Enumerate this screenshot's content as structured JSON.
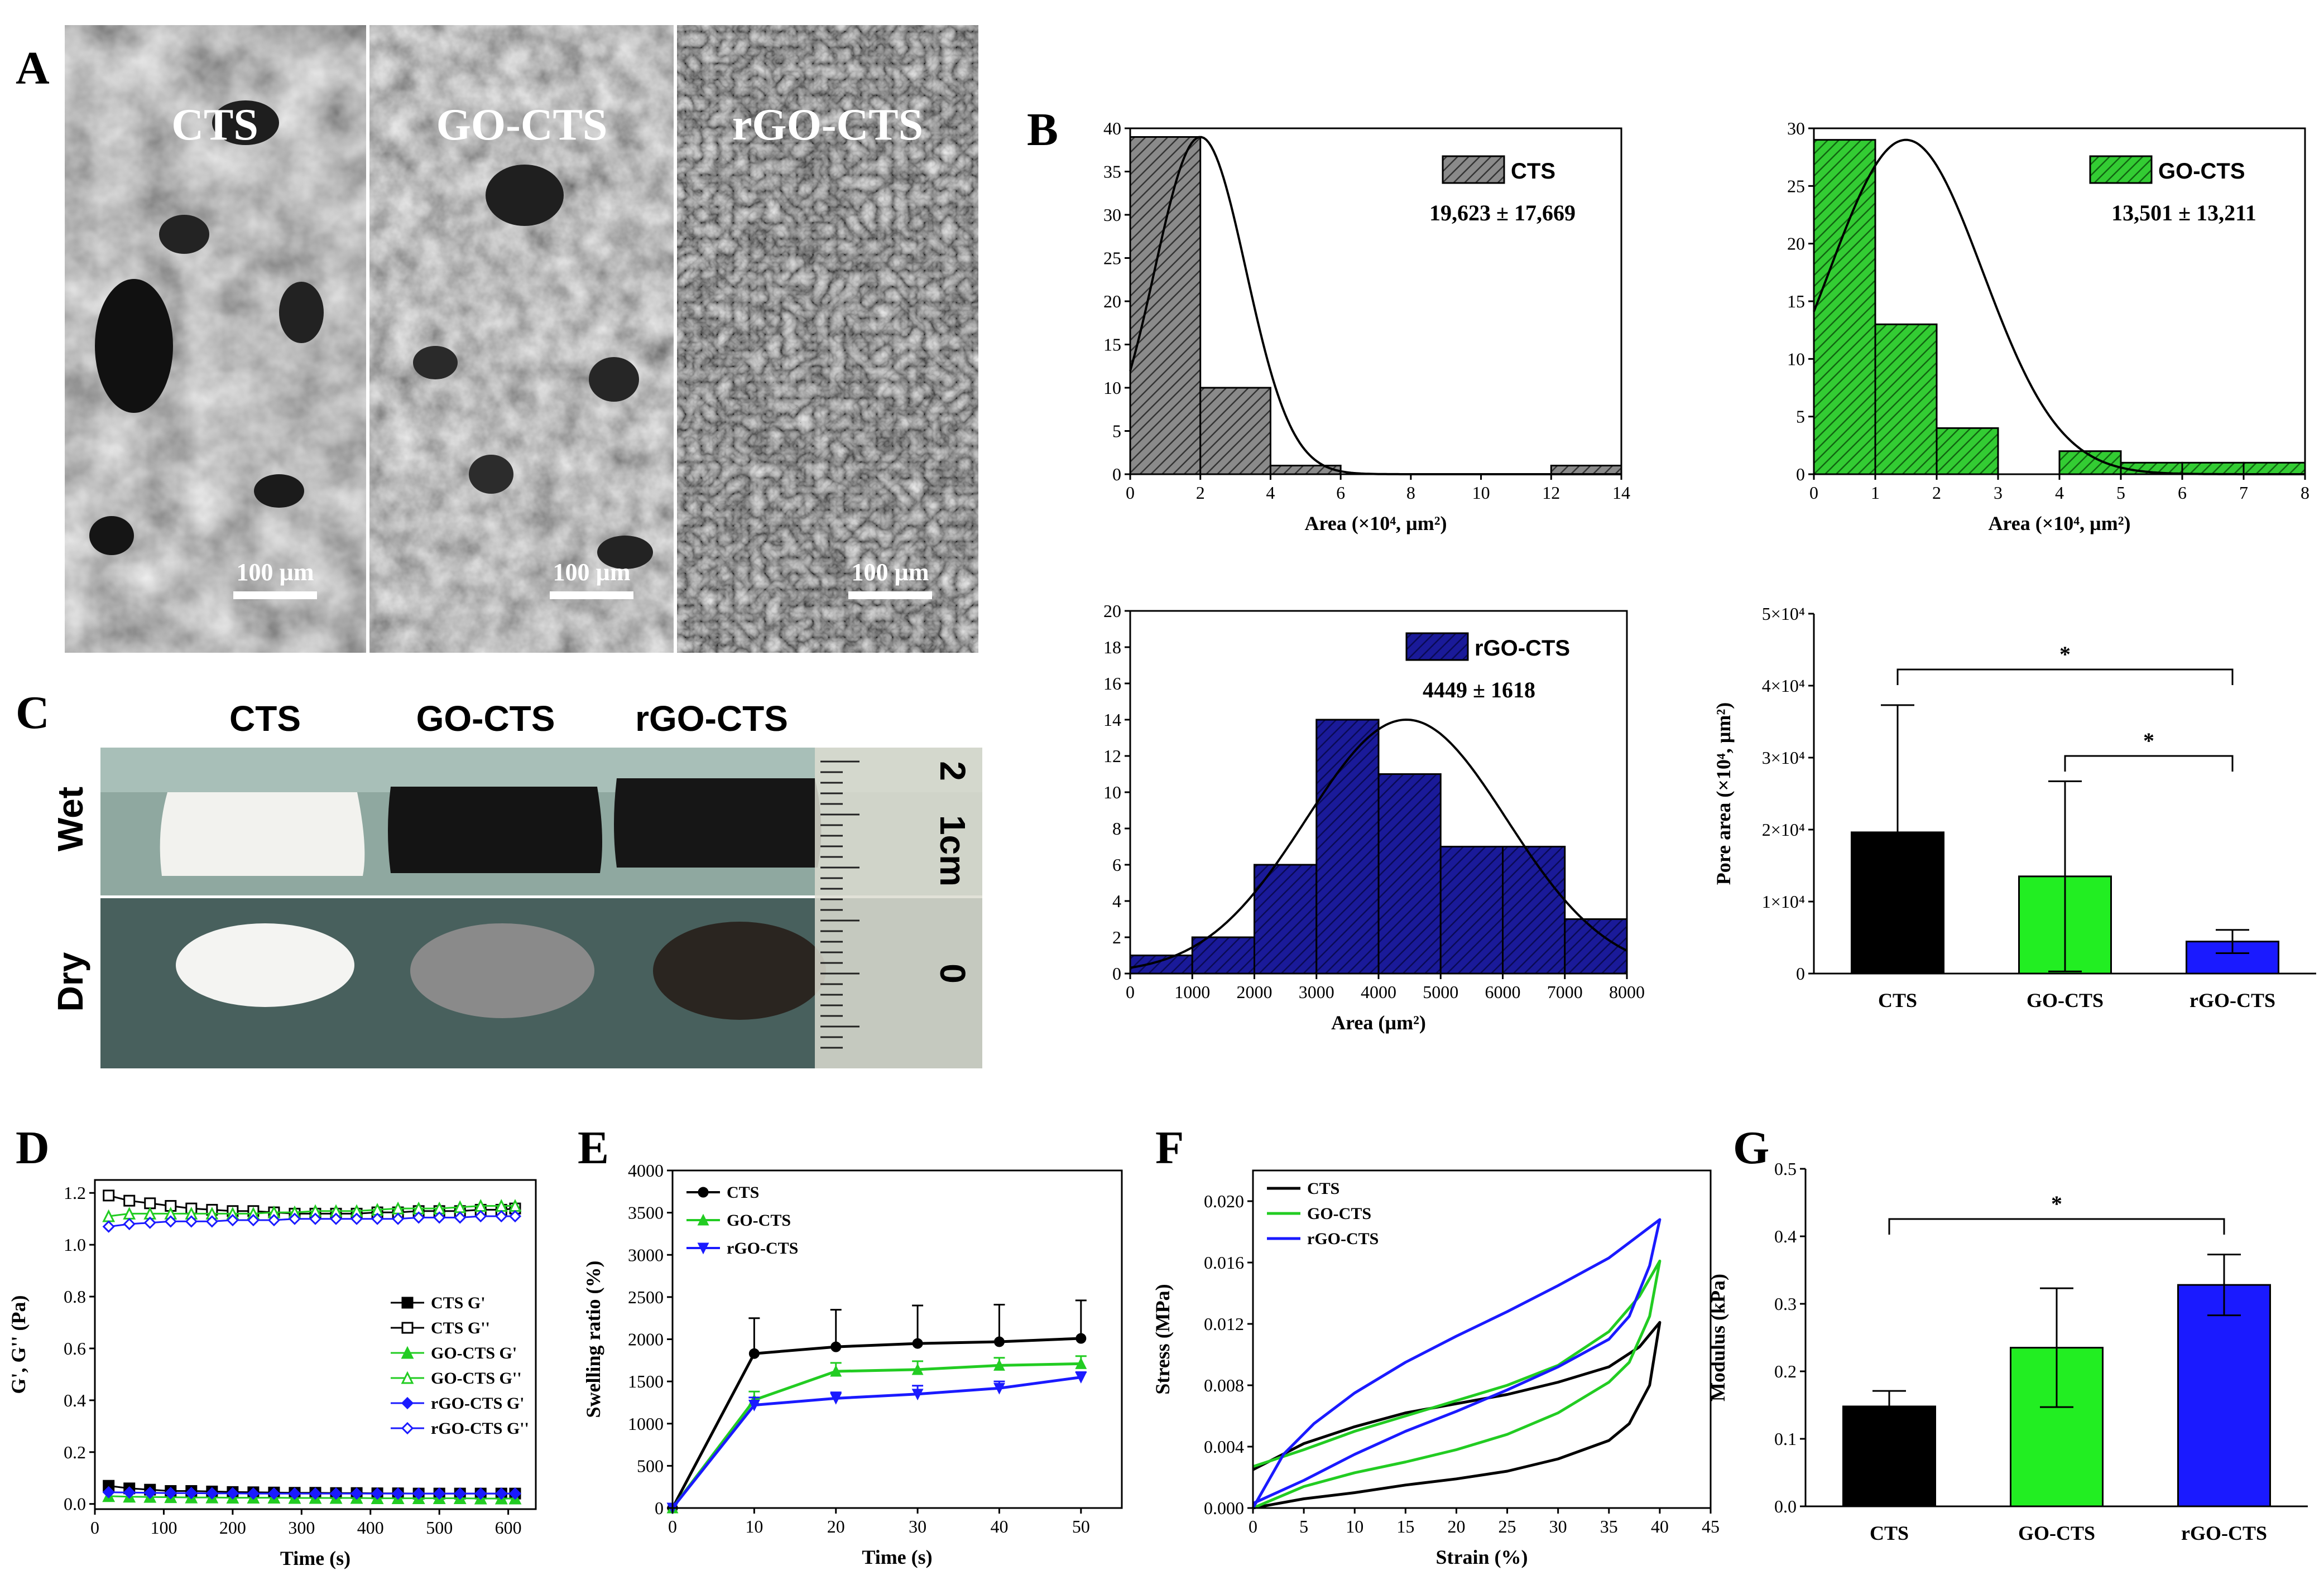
{
  "panel_labels": {
    "a": "A",
    "b": "B",
    "c": "C",
    "d": "D",
    "e": "E",
    "f": "F",
    "g": "G"
  },
  "colors": {
    "cts": "#000000",
    "go": "#22cc22",
    "rgo": "#1a1aff",
    "hist_cts": "#6e6e6e",
    "hist_go": "#2eb82e",
    "hist_rgo": "#14148c",
    "fit": "#000000"
  },
  "panel_a": {
    "images": [
      {
        "label": "CTS",
        "scale_bar": "100 µm"
      },
      {
        "label": "GO-CTS",
        "scale_bar": "100 µm"
      },
      {
        "label": "rGO-CTS",
        "scale_bar": "100 µm"
      }
    ]
  },
  "panel_c": {
    "columns": [
      "CTS",
      "GO-CTS",
      "rGO-CTS"
    ],
    "rows": [
      "Wet",
      "Dry"
    ],
    "ruler": {
      "cm_label": "1cm",
      "mark_2": "2",
      "mark_0": "0"
    }
  },
  "chart_data": [
    {
      "id": "B1",
      "type": "bar",
      "style": "histogram",
      "series_name": "CTS",
      "stat": "19,623 ± 17,669",
      "xlabel": "Area (×10⁴, µm²)",
      "ylabel": "",
      "xlim": [
        0,
        14
      ],
      "ylim": [
        0,
        40
      ],
      "xticks": [
        "0",
        "2",
        "4",
        "6",
        "8",
        "10",
        "12",
        "14"
      ],
      "yticks": [
        "0",
        "5",
        "10",
        "15",
        "20",
        "25",
        "30",
        "35",
        "40"
      ],
      "bins": [
        {
          "x0": 0,
          "x1": 2,
          "count": 39
        },
        {
          "x0": 2,
          "x1": 4,
          "count": 10
        },
        {
          "x0": 4,
          "x1": 6,
          "count": 1
        },
        {
          "x0": 12,
          "x1": 14,
          "count": 1
        }
      ],
      "fit": {
        "mean": 2.0,
        "sd": 1.3,
        "peak": 39
      }
    },
    {
      "id": "B2",
      "type": "bar",
      "style": "histogram",
      "series_name": "GO-CTS",
      "stat": "13,501 ± 13,211",
      "xlabel": "Area (×10⁴, µm²)",
      "ylabel": "",
      "xlim": [
        0,
        8
      ],
      "ylim": [
        0,
        30
      ],
      "xticks": [
        "0",
        "1",
        "2",
        "3",
        "4",
        "5",
        "6",
        "7",
        "8"
      ],
      "yticks": [
        "0",
        "5",
        "10",
        "15",
        "20",
        "25",
        "30"
      ],
      "bins": [
        {
          "x0": 0,
          "x1": 1,
          "count": 29
        },
        {
          "x0": 1,
          "x1": 2,
          "count": 13
        },
        {
          "x0": 2,
          "x1": 3,
          "count": 4
        },
        {
          "x0": 4,
          "x1": 5,
          "count": 2
        },
        {
          "x0": 5,
          "x1": 6,
          "count": 1
        },
        {
          "x0": 6,
          "x1": 7,
          "count": 1
        },
        {
          "x0": 7,
          "x1": 8,
          "count": 1
        }
      ],
      "fit": {
        "mean": 1.5,
        "sd": 1.25,
        "peak": 29
      }
    },
    {
      "id": "B3",
      "type": "bar",
      "style": "histogram",
      "series_name": "rGO-CTS",
      "stat": "4449 ± 1618",
      "xlabel": "Area (µm²)",
      "ylabel": "",
      "xlim": [
        0,
        8000
      ],
      "ylim": [
        0,
        20
      ],
      "xticks": [
        "0",
        "1000",
        "2000",
        "3000",
        "4000",
        "5000",
        "6000",
        "7000",
        "8000"
      ],
      "yticks": [
        "0",
        "2",
        "4",
        "6",
        "8",
        "10",
        "12",
        "14",
        "16",
        "18",
        "20"
      ],
      "bins": [
        {
          "x0": 0,
          "x1": 1000,
          "count": 1
        },
        {
          "x0": 1000,
          "x1": 2000,
          "count": 2
        },
        {
          "x0": 2000,
          "x1": 3000,
          "count": 6
        },
        {
          "x0": 3000,
          "x1": 4000,
          "count": 14
        },
        {
          "x0": 4000,
          "x1": 5000,
          "count": 11
        },
        {
          "x0": 5000,
          "x1": 6000,
          "count": 7
        },
        {
          "x0": 6000,
          "x1": 7000,
          "count": 7
        },
        {
          "x0": 7000,
          "x1": 8000,
          "count": 3
        }
      ],
      "fit": {
        "mean": 4449,
        "sd": 1618,
        "peak": 14
      }
    },
    {
      "id": "B4",
      "type": "bar",
      "categories": [
        "CTS",
        "GO-CTS",
        "rGO-CTS"
      ],
      "values": [
        19623,
        13501,
        4449
      ],
      "errors": [
        17669,
        13211,
        1618
      ],
      "ylabel": "Pore area (×10⁴, µm²)",
      "ylim": [
        0,
        50000
      ],
      "yticks": [
        "0",
        "1×10⁴",
        "2×10⁴",
        "3×10⁴",
        "4×10⁴",
        "5×10⁴"
      ],
      "significance": [
        {
          "from": 0,
          "to": 2,
          "label": "*"
        },
        {
          "from": 1,
          "to": 2,
          "label": "*"
        }
      ]
    },
    {
      "id": "D",
      "type": "line",
      "xlabel": "Time (s)",
      "ylabel": "G', G'' (Pa)",
      "xlim": [
        0,
        640
      ],
      "ylim": [
        -0.02,
        1.25
      ],
      "xticks": [
        "0",
        "100",
        "200",
        "300",
        "400",
        "500",
        "600"
      ],
      "yticks": [
        "0.0",
        "0.2",
        "0.4",
        "0.6",
        "0.8",
        "1.0",
        "1.2"
      ],
      "x": [
        20,
        50,
        80,
        110,
        140,
        170,
        200,
        230,
        260,
        290,
        320,
        350,
        380,
        410,
        440,
        470,
        500,
        530,
        560,
        590,
        610
      ],
      "series": [
        {
          "name": "CTS G'",
          "color": "#000000",
          "marker": "square-filled",
          "values": [
            0.07,
            0.06,
            0.055,
            0.05,
            0.05,
            0.048,
            0.046,
            0.045,
            0.044,
            0.043,
            0.043,
            0.042,
            0.042,
            0.041,
            0.041,
            0.04,
            0.04,
            0.04,
            0.04,
            0.04,
            0.04
          ]
        },
        {
          "name": "CTS G''",
          "color": "#000000",
          "marker": "square-open",
          "values": [
            1.19,
            1.17,
            1.16,
            1.15,
            1.14,
            1.135,
            1.13,
            1.13,
            1.125,
            1.12,
            1.12,
            1.12,
            1.12,
            1.125,
            1.125,
            1.13,
            1.13,
            1.13,
            1.135,
            1.135,
            1.14
          ]
        },
        {
          "name": "GO-CTS G'",
          "color": "#22cc22",
          "marker": "triangle-filled",
          "values": [
            0.03,
            0.028,
            0.027,
            0.026,
            0.025,
            0.025,
            0.024,
            0.024,
            0.024,
            0.023,
            0.023,
            0.023,
            0.023,
            0.022,
            0.022,
            0.022,
            0.022,
            0.022,
            0.021,
            0.021,
            0.021
          ]
        },
        {
          "name": "GO-CTS G''",
          "color": "#22cc22",
          "marker": "triangle-open",
          "values": [
            1.11,
            1.12,
            1.12,
            1.12,
            1.12,
            1.12,
            1.12,
            1.12,
            1.125,
            1.125,
            1.13,
            1.13,
            1.13,
            1.135,
            1.14,
            1.14,
            1.14,
            1.145,
            1.15,
            1.15,
            1.15
          ]
        },
        {
          "name": "rGO-CTS G'",
          "color": "#1a1aff",
          "marker": "diamond-filled",
          "values": [
            0.045,
            0.044,
            0.043,
            0.042,
            0.042,
            0.041,
            0.041,
            0.04,
            0.04,
            0.04,
            0.04,
            0.04,
            0.04,
            0.04,
            0.04,
            0.04,
            0.04,
            0.04,
            0.04,
            0.04,
            0.04
          ]
        },
        {
          "name": "rGO-CTS G''",
          "color": "#1a1aff",
          "marker": "diamond-open",
          "values": [
            1.07,
            1.08,
            1.085,
            1.09,
            1.09,
            1.09,
            1.095,
            1.095,
            1.095,
            1.1,
            1.1,
            1.1,
            1.1,
            1.1,
            1.1,
            1.105,
            1.105,
            1.105,
            1.11,
            1.11,
            1.11
          ]
        }
      ]
    },
    {
      "id": "E",
      "type": "line",
      "xlabel": "Time (s)",
      "ylabel": "Swelling ratio (%)",
      "xlim": [
        0,
        55
      ],
      "ylim": [
        0,
        4000
      ],
      "xticks": [
        "0",
        "10",
        "20",
        "30",
        "40",
        "50"
      ],
      "yticks": [
        "0",
        "500",
        "1000",
        "1500",
        "2000",
        "2500",
        "3000",
        "3500",
        "4000"
      ],
      "x": [
        0,
        10,
        20,
        30,
        40,
        50
      ],
      "series": [
        {
          "name": "CTS",
          "color": "#000000",
          "marker": "circle",
          "values": [
            0,
            1830,
            1910,
            1950,
            1970,
            2010
          ],
          "errors": [
            0,
            420,
            440,
            450,
            440,
            450
          ]
        },
        {
          "name": "GO-CTS",
          "color": "#22cc22",
          "marker": "triangle",
          "values": [
            0,
            1280,
            1620,
            1640,
            1690,
            1710
          ],
          "errors": [
            0,
            100,
            100,
            100,
            90,
            90
          ]
        },
        {
          "name": "rGO-CTS",
          "color": "#1a1aff",
          "marker": "triangle-down",
          "values": [
            0,
            1220,
            1300,
            1350,
            1420,
            1550
          ],
          "errors": [
            0,
            90,
            70,
            100,
            80,
            60
          ]
        }
      ]
    },
    {
      "id": "F",
      "type": "line",
      "style": "hysteresis",
      "xlabel": "Strain (%)",
      "ylabel": "Stress (MPa)",
      "xlim": [
        0,
        45
      ],
      "ylim": [
        0,
        0.022
      ],
      "xticks": [
        "0",
        "5",
        "10",
        "15",
        "20",
        "25",
        "30",
        "35",
        "40",
        "45"
      ],
      "yticks": [
        "0.000",
        "0.004",
        "0.008",
        "0.012",
        "0.016",
        "0.020"
      ],
      "series": [
        {
          "name": "CTS",
          "color": "#000000",
          "loading": [
            [
              0,
              0.0025
            ],
            [
              5,
              0.0042
            ],
            [
              10,
              0.0053
            ],
            [
              15,
              0.0062
            ],
            [
              20,
              0.0068
            ],
            [
              25,
              0.0074
            ],
            [
              30,
              0.0082
            ],
            [
              35,
              0.0092
            ],
            [
              38,
              0.0105
            ],
            [
              40,
              0.0121
            ]
          ],
          "unloading": [
            [
              40,
              0.0121
            ],
            [
              39,
              0.008
            ],
            [
              37,
              0.0055
            ],
            [
              35,
              0.0044
            ],
            [
              30,
              0.0032
            ],
            [
              25,
              0.0024
            ],
            [
              20,
              0.0019
            ],
            [
              15,
              0.0015
            ],
            [
              10,
              0.001
            ],
            [
              5,
              0.0006
            ],
            [
              0,
              0.0
            ]
          ]
        },
        {
          "name": "GO-CTS",
          "color": "#22cc22",
          "loading": [
            [
              0,
              0.0027
            ],
            [
              5,
              0.0038
            ],
            [
              10,
              0.005
            ],
            [
              15,
              0.006
            ],
            [
              20,
              0.007
            ],
            [
              25,
              0.008
            ],
            [
              30,
              0.0093
            ],
            [
              35,
              0.0115
            ],
            [
              38,
              0.0138
            ],
            [
              40,
              0.0161
            ]
          ],
          "unloading": [
            [
              40,
              0.0161
            ],
            [
              39,
              0.0125
            ],
            [
              37,
              0.0095
            ],
            [
              35,
              0.0082
            ],
            [
              30,
              0.0062
            ],
            [
              25,
              0.0048
            ],
            [
              20,
              0.0038
            ],
            [
              15,
              0.003
            ],
            [
              10,
              0.0023
            ],
            [
              5,
              0.0014
            ],
            [
              0,
              0.0
            ]
          ]
        },
        {
          "name": "rGO-CTS",
          "color": "#1a1aff",
          "loading": [
            [
              0,
              0.0
            ],
            [
              3,
              0.0035
            ],
            [
              6,
              0.0055
            ],
            [
              10,
              0.0075
            ],
            [
              15,
              0.0095
            ],
            [
              20,
              0.0112
            ],
            [
              25,
              0.0128
            ],
            [
              30,
              0.0145
            ],
            [
              35,
              0.0163
            ],
            [
              40,
              0.0188
            ]
          ],
          "unloading": [
            [
              40,
              0.0188
            ],
            [
              39,
              0.0158
            ],
            [
              37,
              0.0125
            ],
            [
              35,
              0.011
            ],
            [
              30,
              0.0092
            ],
            [
              25,
              0.0077
            ],
            [
              20,
              0.0063
            ],
            [
              15,
              0.005
            ],
            [
              10,
              0.0035
            ],
            [
              5,
              0.0018
            ],
            [
              0,
              0.0003
            ]
          ]
        }
      ]
    },
    {
      "id": "G",
      "type": "bar",
      "categories": [
        "CTS",
        "GO-CTS",
        "rGO-CTS"
      ],
      "values": [
        0.148,
        0.235,
        0.328
      ],
      "errors": [
        0.023,
        0.088,
        0.045
      ],
      "ylabel": "Modulus (kPa)",
      "ylim": [
        0,
        0.5
      ],
      "yticks": [
        "0.0",
        "0.1",
        "0.2",
        "0.3",
        "0.4",
        "0.5"
      ],
      "significance": [
        {
          "from": 0,
          "to": 2,
          "label": "*"
        }
      ]
    }
  ]
}
